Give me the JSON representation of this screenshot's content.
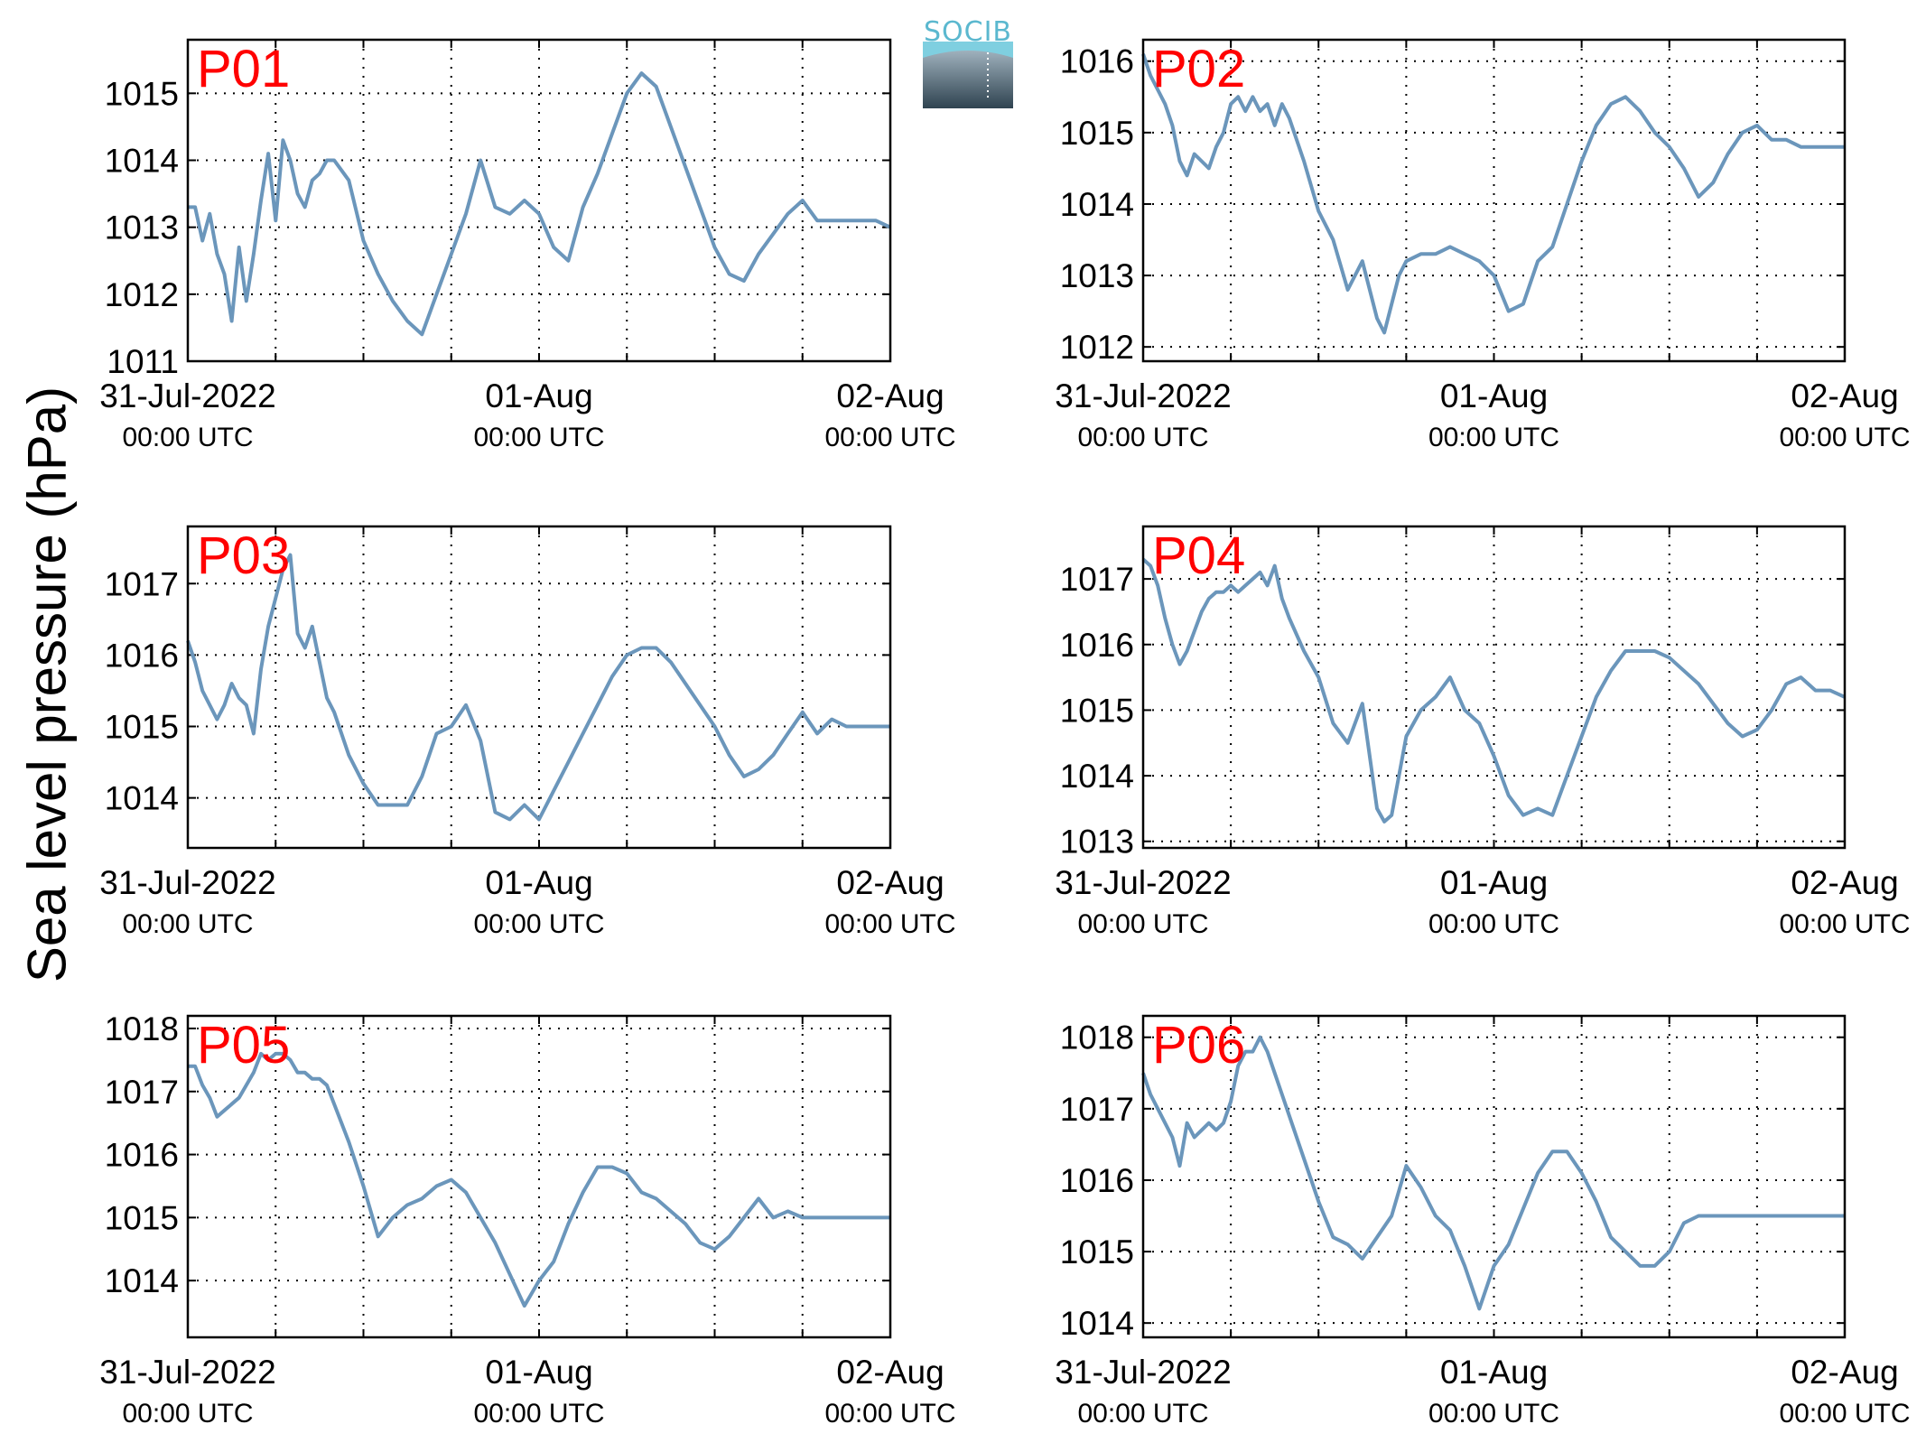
{
  "figure": {
    "ylabel": "Sea level pressure (hPa)",
    "logo_text": "SOCIB"
  },
  "chart_data": [
    {
      "type": "line",
      "panel": "P01",
      "ylim": [
        1011,
        1015.8
      ],
      "yticks": [
        1011,
        1012,
        1013,
        1014,
        1015
      ],
      "xlim": [
        0,
        48
      ],
      "x_tick_labels": [
        {
          "x": 0,
          "date": "31-Jul-2022",
          "time": "00:00 UTC"
        },
        {
          "x": 24,
          "date": "01-Aug",
          "time": "00:00 UTC"
        },
        {
          "x": 48,
          "date": "02-Aug",
          "time": "00:00 UTC"
        }
      ],
      "grid": true,
      "color": "#6b96bb",
      "x": [
        0,
        0.5,
        1,
        1.5,
        2,
        2.5,
        3,
        3.5,
        4,
        4.5,
        5,
        5.5,
        6,
        6.5,
        7,
        7.5,
        8,
        8.5,
        9,
        9.5,
        10,
        11,
        12,
        13,
        14,
        15,
        16,
        17,
        18,
        19,
        20,
        21,
        22,
        23,
        24,
        25,
        26,
        27,
        28,
        29,
        30,
        31,
        32,
        33,
        34,
        35,
        36,
        37,
        38,
        39,
        40,
        41,
        42,
        43,
        44,
        45,
        46,
        47,
        48
      ],
      "y": [
        1013.3,
        1013.3,
        1012.8,
        1013.2,
        1012.6,
        1012.3,
        1011.6,
        1012.7,
        1011.9,
        1012.6,
        1013.4,
        1014.1,
        1013.1,
        1014.3,
        1014.0,
        1013.5,
        1013.3,
        1013.7,
        1013.8,
        1014.0,
        1014.0,
        1013.7,
        1012.8,
        1012.3,
        1011.9,
        1011.6,
        1011.4,
        1012.0,
        1012.6,
        1013.2,
        1014.0,
        1013.3,
        1013.2,
        1013.4,
        1013.2,
        1012.7,
        1012.5,
        1013.3,
        1013.8,
        1014.4,
        1015.0,
        1015.3,
        1015.1,
        1014.5,
        1013.9,
        1013.3,
        1012.7,
        1012.3,
        1012.2,
        1012.6,
        1012.9,
        1013.2,
        1013.4,
        1013.1,
        1013.1,
        1013.1,
        1013.1,
        1013.1,
        1013.0
      ]
    },
    {
      "type": "line",
      "panel": "P02",
      "ylim": [
        1011.8,
        1016.3
      ],
      "yticks": [
        1012,
        1013,
        1014,
        1015,
        1016
      ],
      "xlim": [
        0,
        48
      ],
      "x_tick_labels": [
        {
          "x": 0,
          "date": "31-Jul-2022",
          "time": "00:00 UTC"
        },
        {
          "x": 24,
          "date": "01-Aug",
          "time": "00:00 UTC"
        },
        {
          "x": 48,
          "date": "02-Aug",
          "time": "00:00 UTC"
        }
      ],
      "grid": true,
      "color": "#6b96bb",
      "x": [
        0,
        0.5,
        1,
        1.5,
        2,
        2.5,
        3,
        3.5,
        4,
        4.5,
        5,
        5.5,
        6,
        6.5,
        7,
        7.5,
        8,
        8.5,
        9,
        9.5,
        10,
        11,
        12,
        13,
        14,
        15,
        16,
        16.5,
        17,
        17.5,
        18,
        19,
        20,
        21,
        22,
        23,
        24,
        25,
        26,
        27,
        28,
        29,
        30,
        31,
        32,
        33,
        34,
        35,
        36,
        37,
        38,
        39,
        40,
        41,
        42,
        43,
        44,
        45,
        46,
        47,
        48
      ],
      "y": [
        1016.1,
        1015.8,
        1015.6,
        1015.4,
        1015.1,
        1014.6,
        1014.4,
        1014.7,
        1014.6,
        1014.5,
        1014.8,
        1015.0,
        1015.4,
        1015.5,
        1015.3,
        1015.5,
        1015.3,
        1015.4,
        1015.1,
        1015.4,
        1015.2,
        1014.6,
        1013.9,
        1013.5,
        1012.8,
        1013.2,
        1012.4,
        1012.2,
        1012.6,
        1013.0,
        1013.2,
        1013.3,
        1013.3,
        1013.4,
        1013.3,
        1013.2,
        1013.0,
        1012.5,
        1012.6,
        1013.2,
        1013.4,
        1014.0,
        1014.6,
        1015.1,
        1015.4,
        1015.5,
        1015.3,
        1015.0,
        1014.8,
        1014.5,
        1014.1,
        1014.3,
        1014.7,
        1015.0,
        1015.1,
        1014.9,
        1014.9,
        1014.8,
        1014.8,
        1014.8,
        1014.8
      ]
    },
    {
      "type": "line",
      "panel": "P03",
      "ylim": [
        1013.3,
        1017.8
      ],
      "yticks": [
        1014,
        1015,
        1016,
        1017
      ],
      "xlim": [
        0,
        48
      ],
      "x_tick_labels": [
        {
          "x": 0,
          "date": "31-Jul-2022",
          "time": "00:00 UTC"
        },
        {
          "x": 24,
          "date": "01-Aug",
          "time": "00:00 UTC"
        },
        {
          "x": 48,
          "date": "02-Aug",
          "time": "00:00 UTC"
        }
      ],
      "grid": true,
      "color": "#6b96bb",
      "x": [
        0,
        0.5,
        1,
        1.5,
        2,
        2.5,
        3,
        3.5,
        4,
        4.5,
        5,
        5.5,
        6,
        6.5,
        7,
        7.5,
        8,
        8.5,
        9,
        9.5,
        10,
        11,
        12,
        13,
        14,
        15,
        16,
        17,
        18,
        19,
        20,
        21,
        22,
        23,
        24,
        25,
        26,
        27,
        28,
        29,
        30,
        31,
        32,
        33,
        34,
        35,
        36,
        37,
        38,
        39,
        40,
        41,
        42,
        43,
        44,
        45,
        46,
        47,
        48
      ],
      "y": [
        1016.2,
        1015.9,
        1015.5,
        1015.3,
        1015.1,
        1015.3,
        1015.6,
        1015.4,
        1015.3,
        1014.9,
        1015.8,
        1016.4,
        1016.8,
        1017.2,
        1017.4,
        1016.3,
        1016.1,
        1016.4,
        1015.9,
        1015.4,
        1015.2,
        1014.6,
        1014.2,
        1013.9,
        1013.9,
        1013.9,
        1014.3,
        1014.9,
        1015.0,
        1015.3,
        1014.8,
        1013.8,
        1013.7,
        1013.9,
        1013.7,
        1014.1,
        1014.5,
        1014.9,
        1015.3,
        1015.7,
        1016.0,
        1016.1,
        1016.1,
        1015.9,
        1015.6,
        1015.3,
        1015.0,
        1014.6,
        1014.3,
        1014.4,
        1014.6,
        1014.9,
        1015.2,
        1014.9,
        1015.1,
        1015.0,
        1015.0,
        1015.0,
        1015.0
      ]
    },
    {
      "type": "line",
      "panel": "P04",
      "ylim": [
        1012.9,
        1017.8
      ],
      "yticks": [
        1013,
        1014,
        1015,
        1016,
        1017
      ],
      "xlim": [
        0,
        48
      ],
      "x_tick_labels": [
        {
          "x": 0,
          "date": "31-Jul-2022",
          "time": "00:00 UTC"
        },
        {
          "x": 24,
          "date": "01-Aug",
          "time": "00:00 UTC"
        },
        {
          "x": 48,
          "date": "02-Aug",
          "time": "00:00 UTC"
        }
      ],
      "grid": true,
      "color": "#6b96bb",
      "x": [
        0,
        0.5,
        1,
        1.5,
        2,
        2.5,
        3,
        3.5,
        4,
        4.5,
        5,
        5.5,
        6,
        6.5,
        7,
        7.5,
        8,
        8.5,
        9,
        9.5,
        10,
        11,
        12,
        13,
        14,
        15,
        16,
        16.5,
        17,
        17.5,
        18,
        19,
        20,
        21,
        22,
        23,
        24,
        25,
        26,
        27,
        28,
        29,
        30,
        31,
        32,
        33,
        34,
        35,
        36,
        37,
        38,
        39,
        40,
        41,
        42,
        43,
        44,
        45,
        46,
        47,
        48
      ],
      "y": [
        1017.3,
        1017.2,
        1016.9,
        1016.4,
        1016.0,
        1015.7,
        1015.9,
        1016.2,
        1016.5,
        1016.7,
        1016.8,
        1016.8,
        1016.9,
        1016.8,
        1016.9,
        1017.0,
        1017.1,
        1016.9,
        1017.2,
        1016.7,
        1016.4,
        1015.9,
        1015.5,
        1014.8,
        1014.5,
        1015.1,
        1013.5,
        1013.3,
        1013.4,
        1014.0,
        1014.6,
        1015.0,
        1015.2,
        1015.5,
        1015.0,
        1014.8,
        1014.3,
        1013.7,
        1013.4,
        1013.5,
        1013.4,
        1014.0,
        1014.6,
        1015.2,
        1015.6,
        1015.9,
        1015.9,
        1015.9,
        1015.8,
        1015.6,
        1015.4,
        1015.1,
        1014.8,
        1014.6,
        1014.7,
        1015.0,
        1015.4,
        1015.5,
        1015.3,
        1015.3,
        1015.2
      ]
    },
    {
      "type": "line",
      "panel": "P05",
      "ylim": [
        1013.1,
        1018.2
      ],
      "yticks": [
        1014,
        1015,
        1016,
        1017,
        1018
      ],
      "xlim": [
        0,
        48
      ],
      "x_tick_labels": [
        {
          "x": 0,
          "date": "31-Jul-2022",
          "time": "00:00 UTC"
        },
        {
          "x": 24,
          "date": "01-Aug",
          "time": "00:00 UTC"
        },
        {
          "x": 48,
          "date": "02-Aug",
          "time": "00:00 UTC"
        }
      ],
      "grid": true,
      "color": "#6b96bb",
      "x": [
        0,
        0.5,
        1,
        1.5,
        2,
        2.5,
        3,
        3.5,
        4,
        4.5,
        5,
        5.5,
        6,
        6.5,
        7,
        7.5,
        8,
        8.5,
        9,
        9.5,
        10,
        11,
        12,
        13,
        14,
        15,
        16,
        17,
        18,
        19,
        20,
        21,
        22,
        23,
        24,
        25,
        26,
        27,
        28,
        29,
        30,
        31,
        32,
        33,
        34,
        35,
        36,
        37,
        38,
        39,
        40,
        41,
        42,
        43,
        44,
        45,
        46,
        47,
        48
      ],
      "y": [
        1017.4,
        1017.4,
        1017.1,
        1016.9,
        1016.6,
        1016.7,
        1016.8,
        1016.9,
        1017.1,
        1017.3,
        1017.6,
        1017.5,
        1017.6,
        1017.6,
        1017.5,
        1017.3,
        1017.3,
        1017.2,
        1017.2,
        1017.1,
        1016.8,
        1016.2,
        1015.5,
        1014.7,
        1015.0,
        1015.2,
        1015.3,
        1015.5,
        1015.6,
        1015.4,
        1015.0,
        1014.6,
        1014.1,
        1013.6,
        1014.0,
        1014.3,
        1014.9,
        1015.4,
        1015.8,
        1015.8,
        1015.7,
        1015.4,
        1015.3,
        1015.1,
        1014.9,
        1014.6,
        1014.5,
        1014.7,
        1015.0,
        1015.3,
        1015.0,
        1015.1,
        1015.0,
        1015.0,
        1015.0,
        1015.0,
        1015.0,
        1015.0,
        1015.0
      ]
    },
    {
      "type": "line",
      "panel": "P06",
      "ylim": [
        1013.8,
        1018.3
      ],
      "yticks": [
        1014,
        1015,
        1016,
        1017,
        1018
      ],
      "xlim": [
        0,
        48
      ],
      "x_tick_labels": [
        {
          "x": 0,
          "date": "31-Jul-2022",
          "time": "00:00 UTC"
        },
        {
          "x": 24,
          "date": "01-Aug",
          "time": "00:00 UTC"
        },
        {
          "x": 48,
          "date": "02-Aug",
          "time": "00:00 UTC"
        }
      ],
      "grid": true,
      "color": "#6b96bb",
      "x": [
        0,
        0.5,
        1,
        1.5,
        2,
        2.5,
        3,
        3.5,
        4,
        4.5,
        5,
        5.5,
        6,
        6.5,
        7,
        7.5,
        8,
        8.5,
        9,
        9.5,
        10,
        11,
        12,
        13,
        14,
        15,
        16,
        17,
        18,
        19,
        20,
        21,
        22,
        23,
        24,
        25,
        26,
        27,
        28,
        29,
        30,
        31,
        32,
        33,
        34,
        35,
        36,
        37,
        38,
        39,
        40,
        41,
        42,
        43,
        44,
        45,
        46,
        47,
        48
      ],
      "y": [
        1017.5,
        1017.2,
        1017.0,
        1016.8,
        1016.6,
        1016.2,
        1016.8,
        1016.6,
        1016.7,
        1016.8,
        1016.7,
        1016.8,
        1017.1,
        1017.6,
        1017.8,
        1017.8,
        1018.0,
        1017.8,
        1017.5,
        1017.2,
        1016.9,
        1016.3,
        1015.7,
        1015.2,
        1015.1,
        1014.9,
        1015.2,
        1015.5,
        1016.2,
        1015.9,
        1015.5,
        1015.3,
        1014.8,
        1014.2,
        1014.8,
        1015.1,
        1015.6,
        1016.1,
        1016.4,
        1016.4,
        1016.1,
        1015.7,
        1015.2,
        1015.0,
        1014.8,
        1014.8,
        1015.0,
        1015.4,
        1015.5,
        1015.5,
        1015.5,
        1015.5,
        1015.5,
        1015.5,
        1015.5,
        1015.5,
        1015.5,
        1015.5,
        1015.5
      ]
    }
  ]
}
